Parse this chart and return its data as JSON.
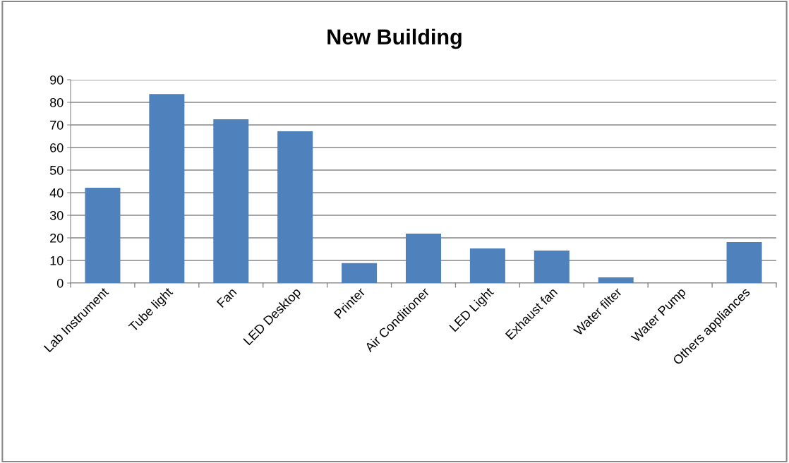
{
  "chart_data": {
    "type": "bar",
    "title": "New Building",
    "categories": [
      "Lab Instrument",
      "Tube light",
      "Fan",
      "LED Desktop",
      "Printer",
      "Air Conditioner",
      "LED Light",
      "Exhaust fan",
      "Water filter",
      "Water Pump",
      "Others appliances"
    ],
    "values": [
      42.2,
      83.7,
      72.5,
      67.2,
      8.8,
      21.9,
      15.3,
      14.4,
      2.5,
      0,
      18.1
    ],
    "color": "#4f81bd",
    "ylim": [
      0,
      90
    ],
    "yticks": [
      0,
      10,
      20,
      30,
      40,
      50,
      60,
      70,
      80,
      90
    ],
    "grid": "y",
    "legend": false
  }
}
